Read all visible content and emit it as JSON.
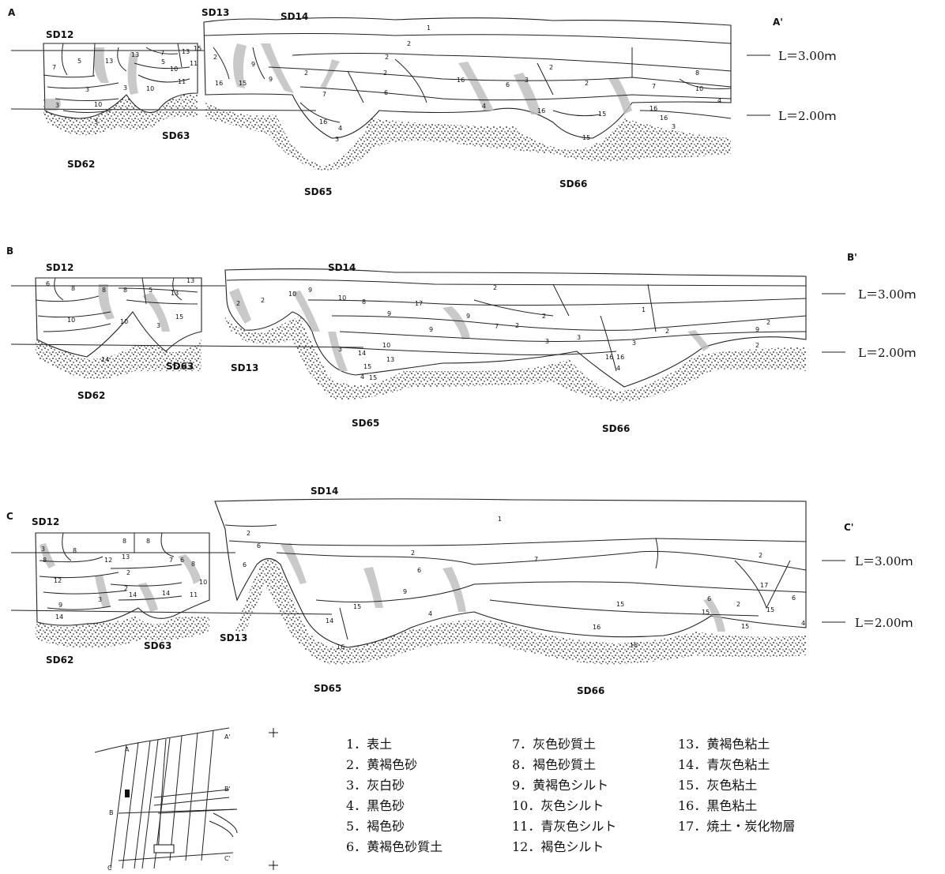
{
  "sections": [
    {
      "id": "A",
      "start_label": "A",
      "end_label": "A'",
      "feature_labels": [
        "SD12",
        "SD13",
        "SD14",
        "SD62",
        "SD63",
        "SD65",
        "SD66"
      ],
      "levels": [
        "L＝3.00ｍ",
        "L＝2.00ｍ"
      ],
      "layer_numbers": [
        "1",
        "2",
        "2",
        "2",
        "2",
        "2",
        "2",
        "6",
        "8",
        "10",
        "7",
        "5",
        "13",
        "13",
        "7",
        "13",
        "15",
        "5",
        "11",
        "11",
        "10",
        "10",
        "3",
        "3",
        "3",
        "3",
        "10",
        "16",
        "2",
        "15",
        "9",
        "9",
        "6",
        "7",
        "16",
        "3",
        "4",
        "16",
        "16",
        "4",
        "3",
        "15",
        "15",
        "7",
        "16",
        "4",
        "3",
        "16"
      ]
    },
    {
      "id": "B",
      "start_label": "B",
      "end_label": "B'",
      "feature_labels": [
        "SD12",
        "SD14",
        "SD62",
        "SD63",
        "SD13",
        "SD65",
        "SD66"
      ],
      "levels": [
        "L＝3.00ｍ",
        "L＝2.00ｍ"
      ],
      "layer_numbers": [
        "6",
        "8",
        "10",
        "5",
        "13",
        "8",
        "8",
        "13",
        "15",
        "10",
        "3",
        "14",
        "2",
        "2",
        "10",
        "9",
        "10",
        "8",
        "17",
        "9",
        "9",
        "10",
        "3",
        "14",
        "13",
        "15",
        "4",
        "15",
        "9",
        "7",
        "2",
        "2",
        "3",
        "3",
        "16",
        "4",
        "16",
        "2",
        "9",
        "2",
        "1",
        "2",
        "2",
        "3"
      ]
    },
    {
      "id": "C",
      "start_label": "C",
      "end_label": "C'",
      "feature_labels": [
        "SD12",
        "SD14",
        "SD62",
        "SD63",
        "SD13",
        "SD65",
        "SD66"
      ],
      "levels": [
        "L＝3.00ｍ",
        "L＝2.00ｍ"
      ],
      "layer_numbers": [
        "3",
        "8",
        "8",
        "8",
        "8",
        "12",
        "13",
        "7",
        "6",
        "8",
        "12",
        "2",
        "2",
        "9",
        "14",
        "3",
        "14",
        "11",
        "10",
        "14",
        "1",
        "2",
        "6",
        "6",
        "2",
        "7",
        "9",
        "6",
        "15",
        "16",
        "14",
        "15",
        "16",
        "4",
        "16",
        "15",
        "6",
        "2",
        "15",
        "17",
        "2",
        "6",
        "15",
        "4"
      ]
    }
  ],
  "key_map": {
    "labels": [
      "A",
      "A'",
      "B",
      "B'",
      "C",
      "C'"
    ]
  },
  "legend": [
    "1．表土",
    "2．黄褐色砂",
    "3．灰白砂",
    "4．黒色砂",
    "5．褐色砂",
    "6．黄褐色砂質土",
    "7．灰色砂質土",
    "8．褐色砂質土",
    "9．黄褐色シルト",
    "10．灰色シルト",
    "11．青灰色シルト",
    "12．褐色シルト",
    "13．黄褐色粘土",
    "14．青灰色粘土",
    "15．灰色粘土",
    "16．黒色粘土",
    "17．焼土・炭化物層"
  ]
}
